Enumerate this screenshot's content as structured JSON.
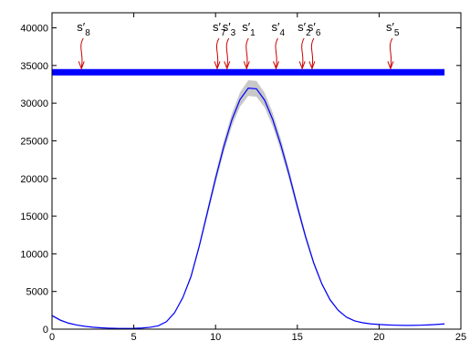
{
  "chart_data": {
    "type": "line",
    "title": "",
    "xlabel": "",
    "ylabel": "",
    "xlim": [
      0,
      25
    ],
    "ylim": [
      0,
      42000
    ],
    "xticks": [
      0,
      5,
      10,
      15,
      20,
      25
    ],
    "yticks": [
      0,
      5000,
      10000,
      15000,
      20000,
      25000,
      30000,
      35000,
      40000
    ],
    "xtick_labels": [
      "0",
      "5",
      "10",
      "15",
      "20",
      "25"
    ],
    "ytick_labels": [
      "0",
      "5000",
      "10000",
      "15000",
      "20000",
      "25000",
      "30000",
      "35000",
      "40000"
    ],
    "grid": false,
    "legend": "none",
    "colors": {
      "line": "#0000ff",
      "band": "#c8c8c8",
      "bar": "#0000ff",
      "arrow": "#cc0000"
    },
    "horizontal_bar": {
      "y": 34100,
      "x_range": [
        0,
        24
      ]
    },
    "series": [
      {
        "x": [
          0,
          0.5,
          1,
          1.5,
          2,
          2.5,
          3,
          3.5,
          4,
          4.5,
          5,
          5.5,
          6,
          6.5,
          7,
          7.5,
          8,
          8.5,
          9,
          9.5,
          10,
          10.5,
          11,
          11.5,
          12,
          12.5,
          13,
          13.5,
          14,
          14.5,
          15,
          15.5,
          16,
          16.5,
          17,
          17.5,
          18,
          18.5,
          19,
          19.5,
          20,
          20.5,
          21,
          21.5,
          22,
          22.5,
          23,
          23.5,
          24
        ],
        "y": [
          1800,
          1200,
          800,
          550,
          380,
          260,
          180,
          130,
          100,
          95,
          110,
          150,
          250,
          450,
          1000,
          2200,
          4200,
          7000,
          11000,
          15500,
          20000,
          24200,
          27800,
          30500,
          32000,
          31900,
          30400,
          27800,
          24400,
          20500,
          16300,
          12300,
          8800,
          6000,
          3900,
          2500,
          1600,
          1100,
          850,
          700,
          620,
          560,
          520,
          500,
          500,
          520,
          560,
          620,
          700
        ],
        "band_halfwidth": [
          150,
          120,
          90,
          70,
          50,
          40,
          30,
          25,
          20,
          20,
          20,
          25,
          30,
          40,
          60,
          100,
          180,
          280,
          400,
          520,
          650,
          760,
          860,
          950,
          1050,
          1050,
          980,
          900,
          800,
          680,
          560,
          440,
          330,
          240,
          170,
          120,
          90,
          70,
          60,
          55,
          50,
          50,
          50,
          50,
          50,
          50,
          55,
          60,
          70
        ]
      }
    ],
    "markers": [
      {
        "label": "s",
        "sub": "8",
        "x": 1.8
      },
      {
        "label": "s",
        "sub": "7",
        "x": 10.1
      },
      {
        "label": "s",
        "sub": "3",
        "x": 10.7
      },
      {
        "label": "s",
        "sub": "1",
        "x": 11.9
      },
      {
        "label": "s",
        "sub": "4",
        "x": 13.7
      },
      {
        "label": "s",
        "sub": "2",
        "x": 15.3
      },
      {
        "label": "s",
        "sub": "6",
        "x": 15.9
      },
      {
        "label": "s",
        "sub": "5",
        "x": 20.7
      }
    ]
  }
}
